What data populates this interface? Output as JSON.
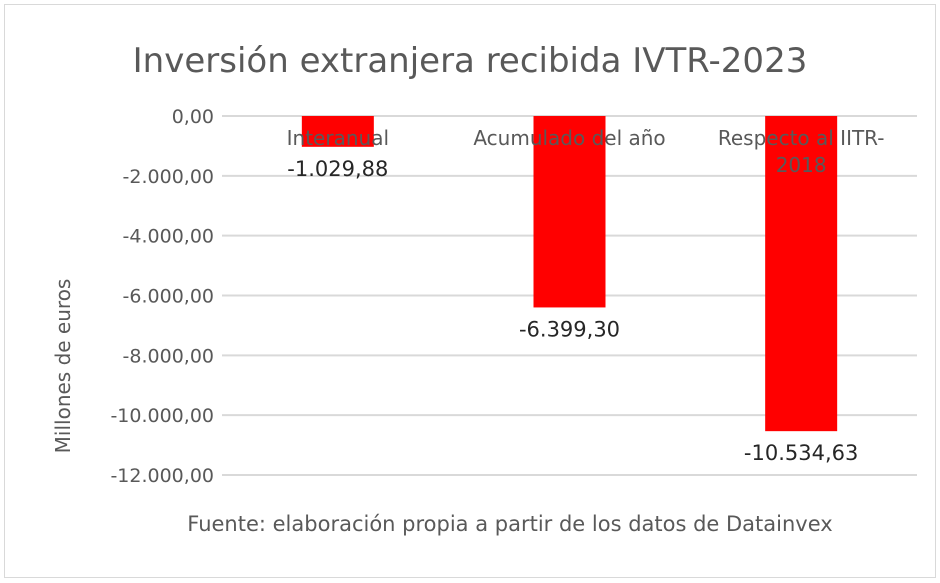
{
  "chart_data": {
    "type": "bar",
    "title": "Inversión extranjera recibida IVTR-2023",
    "ylabel": "Millones de euros",
    "xlabel": "",
    "caption": "Fuente: elaboración propia a partir de los datos de Datainvex",
    "categories": [
      [
        "Interanual"
      ],
      [
        "Acumulado del año"
      ],
      [
        "Respecto al IITR-",
        "2018"
      ]
    ],
    "values": [
      -1029.88,
      -6399.3,
      -10534.63
    ],
    "data_labels": [
      "-1.029,88",
      "-6.399,30",
      "-10.534,63"
    ],
    "ylim": [
      -12000,
      0
    ],
    "yticks": [
      0,
      -2000,
      -4000,
      -6000,
      -8000,
      -10000,
      -12000
    ],
    "ytick_labels": [
      "0,00",
      "-2.000,00",
      "-4.000,00",
      "-6.000,00",
      "-8.000,00",
      "-10.000,00",
      "-12.000,00"
    ],
    "grid": true,
    "legend": "none",
    "bar_color": "#FF0000"
  }
}
